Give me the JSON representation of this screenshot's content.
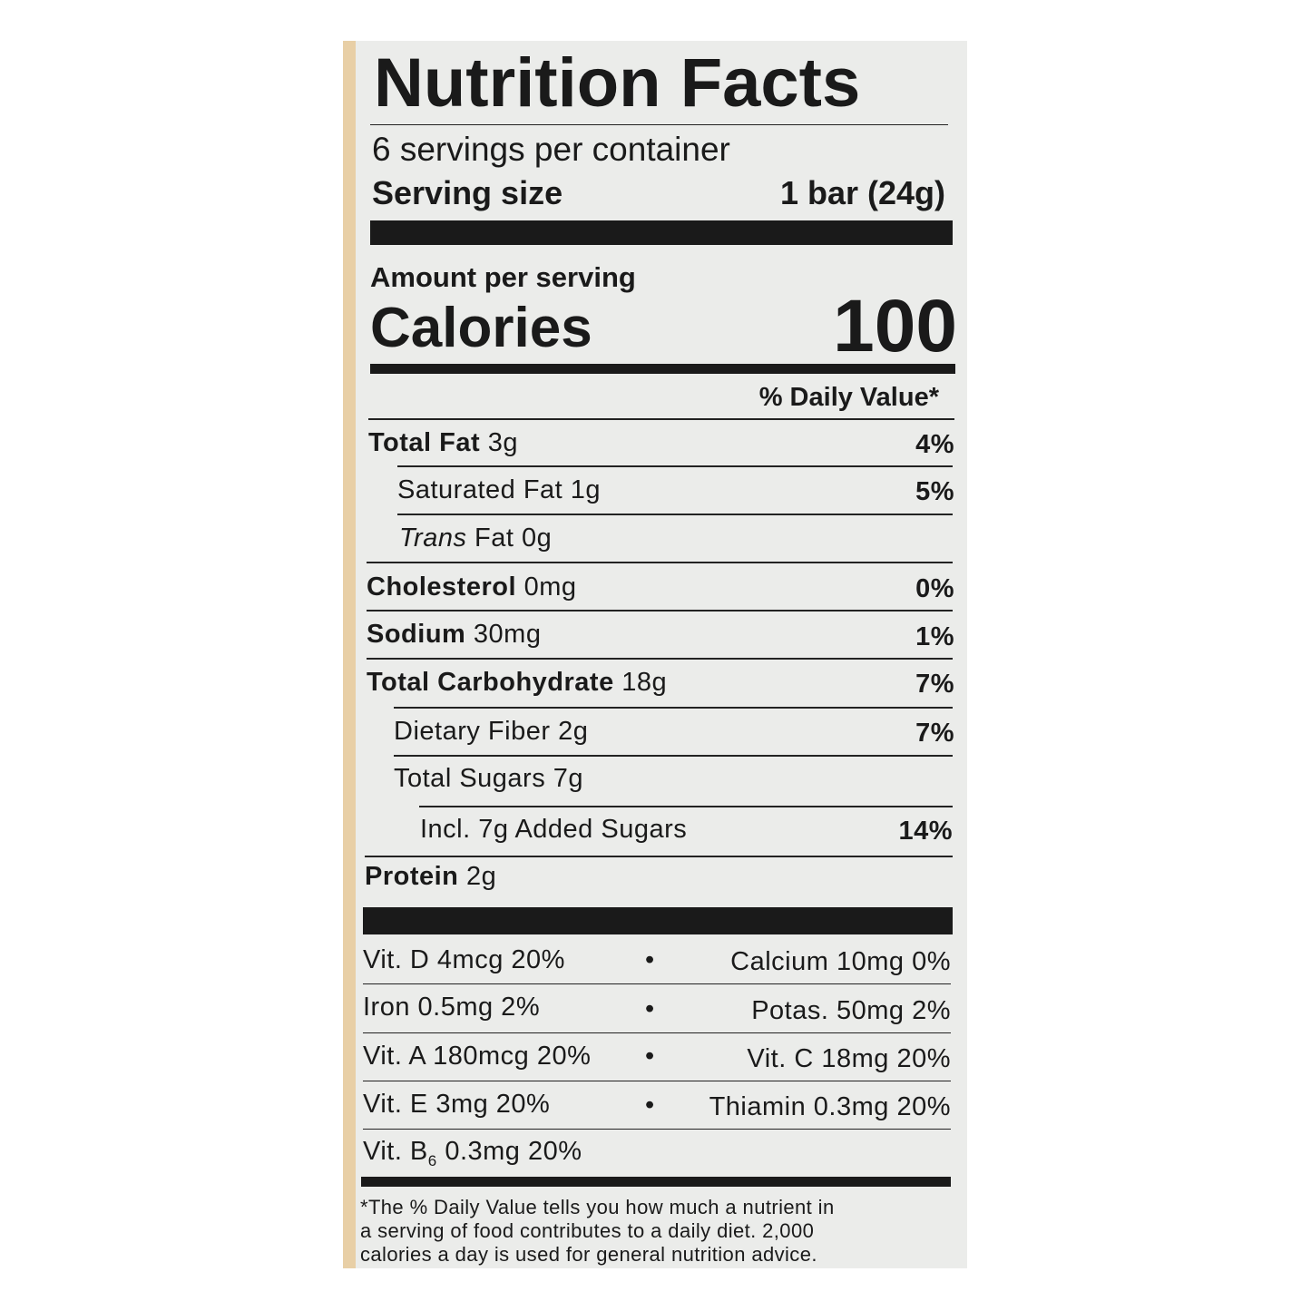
{
  "title": "Nutrition Facts",
  "servings": "6 servings per container",
  "serving_size": {
    "label": "Serving size",
    "value": "1 bar (24g)"
  },
  "amount_per_serving": "Amount per serving",
  "calories": {
    "label": "Calories",
    "value": "100"
  },
  "daily_value_header": "% Daily Value*",
  "nutrients": [
    {
      "name": "Total Fat",
      "amount": "3g",
      "dv": "4%"
    },
    {
      "name": "Saturated Fat",
      "amount": "1g",
      "dv": "5%"
    },
    {
      "name": "Trans",
      "name2": "Fat",
      "amount": "0g"
    },
    {
      "name": "Cholesterol",
      "amount": "0mg",
      "dv": "0%"
    },
    {
      "name": "Sodium",
      "amount": "30mg",
      "dv": "1%"
    },
    {
      "name": "Total Carbohydrate",
      "amount": "18g",
      "dv": "7%"
    },
    {
      "name": "Dietary Fiber",
      "amount": "2g",
      "dv": "7%"
    },
    {
      "name": "Total Sugars",
      "amount": "7g"
    },
    {
      "name": "Incl. 7g Added Sugars",
      "dv": "14%"
    },
    {
      "name": "Protein",
      "amount": "2g"
    }
  ],
  "vitamins": [
    {
      "left": "Vit. D 4mcg 20%",
      "right": "Calcium 10mg 0%"
    },
    {
      "left": "Iron 0.5mg 2%",
      "right": "Potas. 50mg 2%"
    },
    {
      "left": "Vit. A 180mcg 20%",
      "right": "Vit. C 18mg 20%"
    },
    {
      "left": "Vit. E 3mg 20%",
      "right": "Thiamin 0.3mg 20%"
    },
    {
      "left": "Vit. B",
      "subscript": "6",
      "left_rest": "0.3mg 20%"
    }
  ],
  "footnote": [
    "*The % Daily Value tells you how much a nutrient in",
    "a serving of food contributes to a daily diet. 2,000",
    "calories a day is used for general nutrition advice."
  ]
}
